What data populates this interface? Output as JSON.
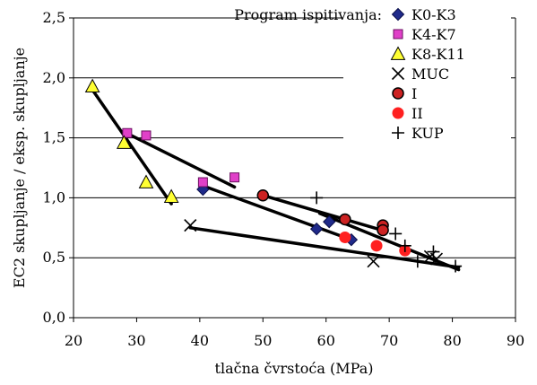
{
  "chart_data": {
    "type": "scatter",
    "title": "",
    "xlabel": "tlačna čvrstoća (MPa)",
    "ylabel": "EC2 skupljanje / eksp. skupljanje",
    "xlim": [
      20,
      90
    ],
    "ylim": [
      0,
      2.5
    ],
    "x_ticks": [
      "20",
      "30",
      "40",
      "50",
      "60",
      "70",
      "80",
      "90"
    ],
    "y_ticks": [
      "0,0",
      "0,5",
      "1,0",
      "1,5",
      "2,0",
      "2,5"
    ],
    "grid": "horizontal",
    "legend": {
      "title": "Program ispitivanja:",
      "placement": "top-right"
    },
    "series": [
      {
        "name": "K0-K3",
        "marker": "diamond",
        "color": "#1f2a8a",
        "points": [
          [
            40.5,
            1.07
          ],
          [
            58.5,
            0.74
          ],
          [
            60.5,
            0.8
          ],
          [
            64.0,
            0.65
          ]
        ]
      },
      {
        "name": "K4-K7",
        "marker": "square",
        "color": "#e040c8",
        "points": [
          [
            28.5,
            1.54
          ],
          [
            31.5,
            1.52
          ],
          [
            40.5,
            1.13
          ],
          [
            45.5,
            1.17
          ]
        ]
      },
      {
        "name": "K8-K11",
        "marker": "triangle",
        "color": "#ffff33",
        "points": [
          [
            23.0,
            1.93
          ],
          [
            28.0,
            1.46
          ],
          [
            31.5,
            1.13
          ],
          [
            35.5,
            1.01
          ]
        ]
      },
      {
        "name": "MUC",
        "marker": "x",
        "color": "#000000",
        "points": [
          [
            38.5,
            0.77
          ],
          [
            67.5,
            0.47
          ],
          [
            76.5,
            0.51
          ],
          [
            77.5,
            0.49
          ]
        ]
      },
      {
        "name": "I",
        "marker": "circle",
        "color": "#cc2222",
        "points": [
          [
            50.0,
            1.02
          ],
          [
            63.0,
            0.82
          ],
          [
            69.0,
            0.77
          ],
          [
            69.0,
            0.73
          ]
        ]
      },
      {
        "name": "II",
        "marker": "circle-plain",
        "color": "#ff2020",
        "points": [
          [
            63.0,
            0.67
          ],
          [
            68.0,
            0.6
          ],
          [
            72.5,
            0.56
          ]
        ]
      },
      {
        "name": "KUP",
        "marker": "plus",
        "color": "#000000",
        "points": [
          [
            58.5,
            1.0
          ],
          [
            71.0,
            0.7
          ],
          [
            72.5,
            0.6
          ],
          [
            74.5,
            0.47
          ],
          [
            77.0,
            0.55
          ],
          [
            80.5,
            0.43
          ]
        ]
      }
    ],
    "trend_lines": [
      [
        [
          23.0,
          1.9
        ],
        [
          35.5,
          0.95
        ]
      ],
      [
        [
          28.0,
          1.55
        ],
        [
          45.5,
          1.09
        ]
      ],
      [
        [
          40.5,
          1.1
        ],
        [
          64.0,
          0.65
        ]
      ],
      [
        [
          50.0,
          1.02
        ],
        [
          69.5,
          0.72
        ]
      ],
      [
        [
          38.5,
          0.75
        ],
        [
          81.0,
          0.42
        ]
      ],
      [
        [
          59.0,
          0.87
        ],
        [
          81.0,
          0.4
        ]
      ]
    ]
  }
}
